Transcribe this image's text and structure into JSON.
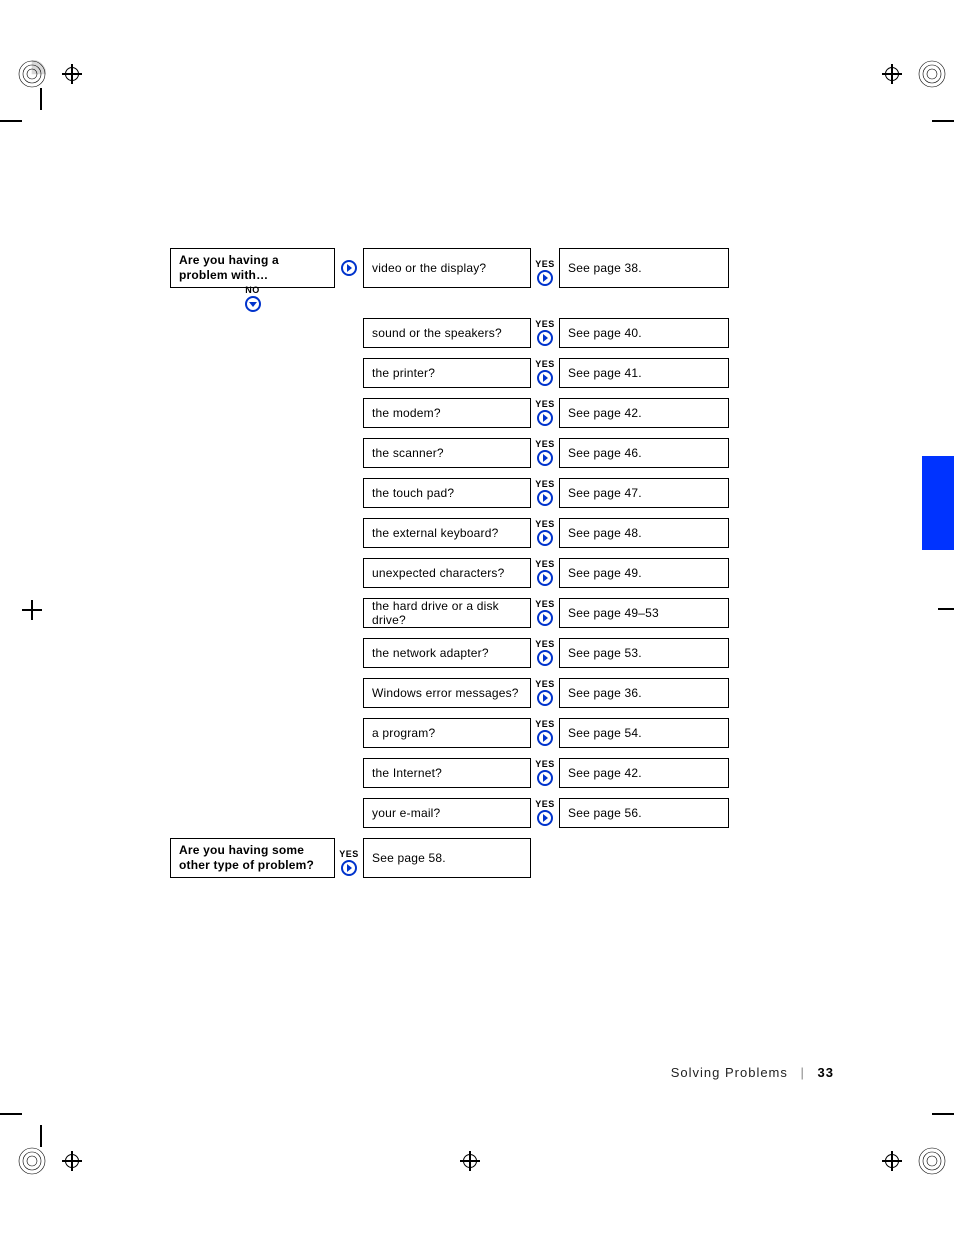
{
  "labels": {
    "yes": "YES",
    "no": "NO"
  },
  "intro_question": "Are you having a problem with…",
  "rows": [
    {
      "problem": "video or the display?",
      "result": "See page 38."
    },
    {
      "problem": "sound or the speakers?",
      "result": "See page 40."
    },
    {
      "problem": "the printer?",
      "result": "See page 41."
    },
    {
      "problem": "the modem?",
      "result": "See page 42."
    },
    {
      "problem": "the scanner?",
      "result": "See page 46."
    },
    {
      "problem": "the touch pad?",
      "result": "See page 47."
    },
    {
      "problem": "the external keyboard?",
      "result": "See page 48."
    },
    {
      "problem": "unexpected characters?",
      "result": "See page 49."
    },
    {
      "problem": "the hard drive or a disk drive?",
      "result": "See page 49–53"
    },
    {
      "problem": "the network adapter?",
      "result": "See page 53."
    },
    {
      "problem": "Windows error messages?",
      "result": "See page 36."
    },
    {
      "problem": "a program?",
      "result": "See page 54."
    },
    {
      "problem": "the Internet?",
      "result": "See page 42."
    },
    {
      "problem": "your e-mail?",
      "result": "See page 56."
    }
  ],
  "other_question": "Are you having some other type of problem?",
  "other_result": "See page 58.",
  "footer": {
    "section": "Solving Problems",
    "page": "33"
  },
  "colors": {
    "accent": "#0033cc",
    "tab": "#0033ff",
    "border": "#000000",
    "text": "#000000"
  }
}
